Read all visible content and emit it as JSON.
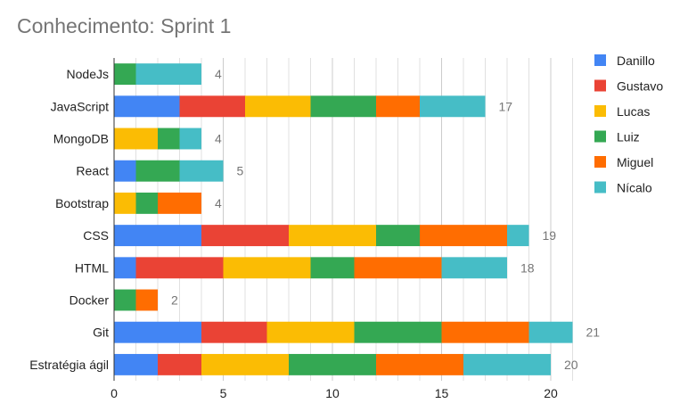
{
  "title": "Conhecimento: Sprint 1",
  "colors": {
    "Danillo": "#4285f4",
    "Gustavo": "#ea4335",
    "Lucas": "#fbbc04",
    "Luiz": "#34a853",
    "Miguel": "#ff6d01",
    "Nícalo": "#46bdc6",
    "grid": "#e0e0e0",
    "axis": "#333333",
    "total_label": "#757575"
  },
  "chart_data": {
    "type": "bar",
    "orientation": "horizontal",
    "stacked": true,
    "title": "Conhecimento: Sprint 1",
    "categories": [
      "NodeJs",
      "JavaScript",
      "MongoDB",
      "React",
      "Bootstrap",
      "CSS",
      "HTML",
      "Docker",
      "Git",
      "Estratégia ágil"
    ],
    "series": [
      {
        "name": "Danillo",
        "values": [
          0,
          3,
          0,
          1,
          0,
          4,
          1,
          0,
          4,
          2
        ]
      },
      {
        "name": "Gustavo",
        "values": [
          0,
          3,
          0,
          0,
          0,
          4,
          4,
          0,
          3,
          2
        ]
      },
      {
        "name": "Lucas",
        "values": [
          0,
          3,
          2,
          0,
          1,
          4,
          4,
          0,
          4,
          4
        ]
      },
      {
        "name": "Luiz",
        "values": [
          1,
          3,
          1,
          2,
          1,
          2,
          2,
          1,
          4,
          4
        ]
      },
      {
        "name": "Miguel",
        "values": [
          0,
          2,
          0,
          0,
          2,
          4,
          4,
          1,
          4,
          4
        ]
      },
      {
        "name": "Nícalo",
        "values": [
          3,
          3,
          1,
          2,
          0,
          1,
          3,
          0,
          2,
          4
        ]
      }
    ],
    "totals": [
      4,
      17,
      4,
      5,
      4,
      19,
      18,
      2,
      21,
      20
    ],
    "xlim": [
      0,
      21
    ],
    "xticks": [
      0,
      5,
      10,
      15,
      20
    ],
    "grid": true,
    "legend_position": "right"
  }
}
